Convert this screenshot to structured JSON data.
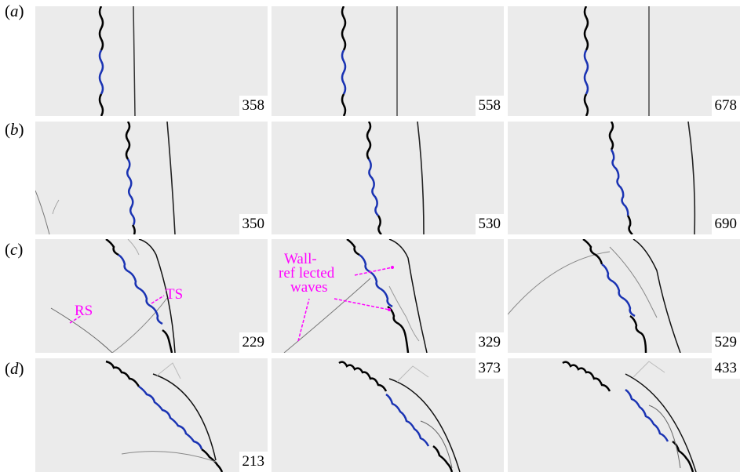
{
  "rows": [
    {
      "label": "a",
      "frames": [
        "358",
        "558",
        "678"
      ]
    },
    {
      "label": "b",
      "frames": [
        "350",
        "530",
        "690"
      ]
    },
    {
      "label": "c",
      "frames": [
        "229",
        "329",
        "529"
      ]
    },
    {
      "label": "d",
      "frames": [
        "213",
        "373",
        "433"
      ]
    }
  ],
  "annotations": {
    "rs": "RS",
    "ts": "TS",
    "wall_line1": "Wall-",
    "wall_line2": "ref lected",
    "wall_line3": "waves"
  },
  "colors": {
    "panel_bg": "#ebebeb",
    "interface": "#000000",
    "interface_highlight": "#1a33b3",
    "annotation": "#ff00ff"
  }
}
